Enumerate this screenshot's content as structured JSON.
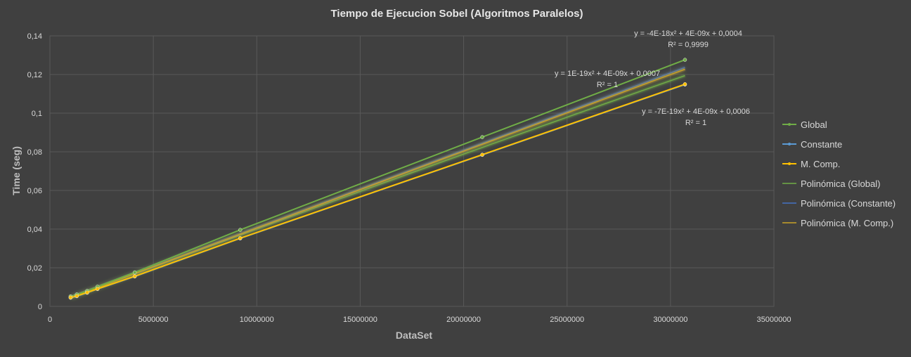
{
  "chart_data": {
    "type": "scatter",
    "title": "Tiempo de Ejecucion Sobel (Algoritmos Paralelos)",
    "xlabel": "DataSet",
    "ylabel": "Time (seg)",
    "xlim": [
      0,
      35000000
    ],
    "ylim": [
      0,
      0.14
    ],
    "x_ticks": [
      0,
      5000000,
      10000000,
      15000000,
      20000000,
      25000000,
      30000000,
      35000000
    ],
    "y_ticks": [
      0,
      0.02,
      0.04,
      0.06,
      0.08,
      0.1,
      0.12,
      0.14
    ],
    "x_tick_labels": [
      "0",
      "5000000",
      "10000000",
      "15000000",
      "20000000",
      "25000000",
      "30000000",
      "35000000"
    ],
    "y_tick_labels": [
      "0",
      "0,02",
      "0,04",
      "0,06",
      "0,08",
      "0,1",
      "0,12",
      "0,14"
    ],
    "grid": true,
    "legend_position": "right",
    "series": [
      {
        "name": "Global",
        "color": "#70ad47",
        "marker": true,
        "x": [
          1000000,
          1300000,
          1800000,
          2300000,
          4100000,
          9200000,
          20900000,
          30700000
        ],
        "y": [
          0.0052,
          0.0062,
          0.008,
          0.0102,
          0.0176,
          0.0396,
          0.0876,
          0.1276
        ]
      },
      {
        "name": "Constante",
        "color": "#5b9bd5",
        "marker": true,
        "x": [
          1000000,
          1300000,
          1800000,
          2300000,
          4100000,
          9200000,
          20900000,
          30700000
        ],
        "y": [
          0.0045,
          0.0053,
          0.0071,
          0.009,
          0.0155,
          0.0352,
          0.0784,
          0.1148
        ]
      },
      {
        "name": "M. Comp.",
        "color": "#ffc000",
        "marker": true,
        "x": [
          1000000,
          1300000,
          1800000,
          2300000,
          4100000,
          9200000,
          20900000,
          30700000
        ],
        "y": [
          0.0046,
          0.0054,
          0.0072,
          0.0091,
          0.0156,
          0.0353,
          0.0785,
          0.115
        ]
      },
      {
        "name": "Polinómica (Global)",
        "color": "#70ad47",
        "trendline": true,
        "coeffs": [
          -4e-18,
          4e-09,
          0.0004
        ],
        "x_range": [
          1000000,
          30700000
        ]
      },
      {
        "name": "Polinómica (Constante)",
        "color": "#4472c4",
        "trendline": true,
        "coeffs": [
          1e-19,
          4e-09,
          0.0007
        ],
        "x_range": [
          1000000,
          30700000
        ]
      },
      {
        "name": "Polinómica (M. Comp.)",
        "color": "#c9a227",
        "trendline": true,
        "coeffs": [
          -7e-19,
          4e-09,
          0.0006
        ],
        "x_range": [
          1000000,
          30700000
        ]
      }
    ],
    "annotations": [
      {
        "line1": "y = -4E-18x² + 4E-09x + 0,0004",
        "line2": "R² = 0,9999"
      },
      {
        "line1": "y = 1E-19x² + 4E-09x + 0,0007",
        "line2": "R² = 1"
      },
      {
        "line1": "y = -7E-19x² + 4E-09x + 0,0006",
        "line2": "R² = 1"
      }
    ]
  }
}
